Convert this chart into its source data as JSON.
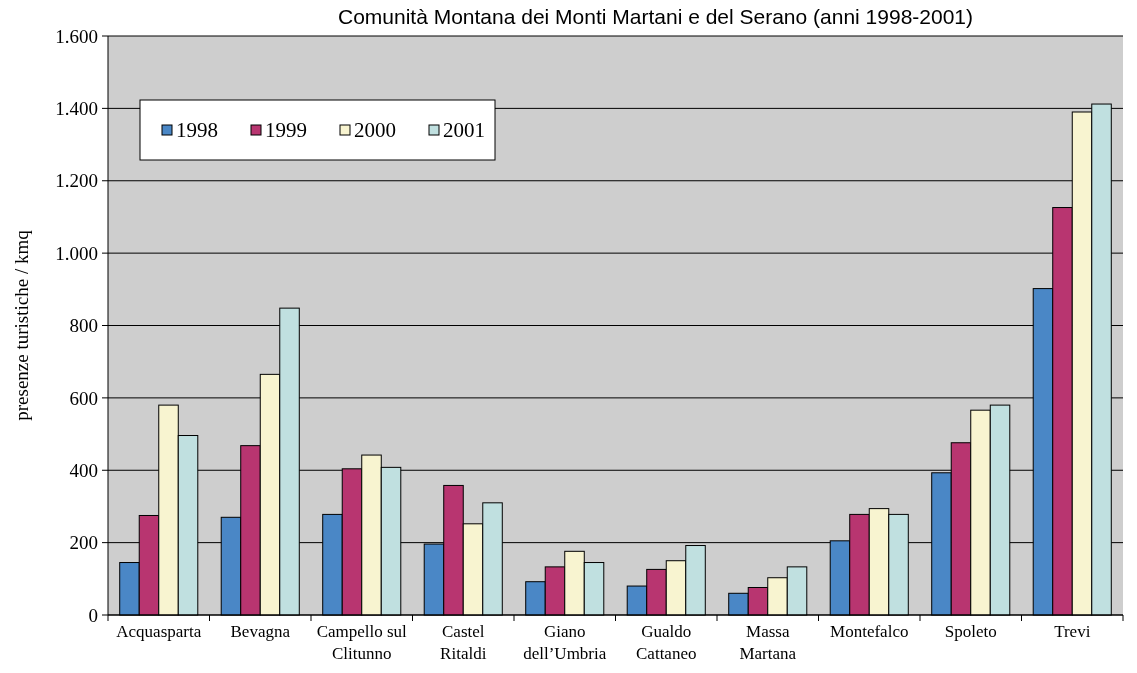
{
  "chart_data": {
    "type": "bar",
    "title": "Comunità Montana dei Monti Martani e del Serano (anni 1998-2001)",
    "ylabel": "presenze turistiche / kmq",
    "categories": [
      "Acquasparta",
      "Bevagna",
      "Campello sul Clitunno",
      "Castel Ritaldi",
      "Giano dell’Umbria",
      "Gualdo Cattaneo",
      "Massa Martana",
      "Montefalco",
      "Spoleto",
      "Trevi"
    ],
    "series": [
      {
        "name": "1998",
        "color": "#4a87c6",
        "values": [
          145,
          270,
          278,
          196,
          92,
          80,
          60,
          205,
          393,
          902
        ]
      },
      {
        "name": "1999",
        "color": "#b83570",
        "values": [
          275,
          468,
          404,
          358,
          133,
          126,
          76,
          278,
          476,
          1126
        ]
      },
      {
        "name": "2000",
        "color": "#f8f4d0",
        "values": [
          580,
          665,
          442,
          252,
          176,
          150,
          103,
          294,
          566,
          1390
        ]
      },
      {
        "name": "2001",
        "color": "#c0e0e0",
        "values": [
          496,
          848,
          408,
          310,
          145,
          192,
          133,
          278,
          580,
          1412
        ]
      }
    ],
    "ylim": [
      0,
      1600
    ],
    "yticks": [
      0,
      200,
      400,
      600,
      800,
      {
        "value": 1000,
        "label": "1.000"
      },
      {
        "value": 1200,
        "label": "1.200"
      },
      {
        "value": 1400,
        "label": "1.400"
      },
      {
        "value": 1600,
        "label": "1.600"
      }
    ],
    "grid": "y",
    "legend": "top left"
  }
}
